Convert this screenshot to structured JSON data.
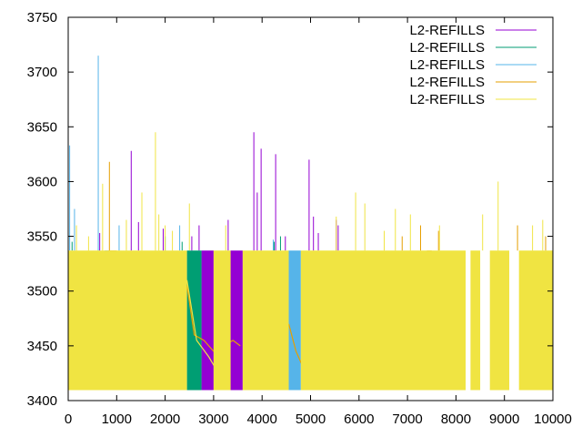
{
  "chart_data": {
    "type": "line",
    "title": "",
    "xlabel": "",
    "ylabel": "",
    "xlim": [
      0,
      10000
    ],
    "ylim": [
      3400,
      3750
    ],
    "x_ticks": [
      "0",
      "1000",
      "2000",
      "3000",
      "4000",
      "5000",
      "6000",
      "7000",
      "8000",
      "9000",
      "10000"
    ],
    "y_ticks": [
      "3400",
      "3450",
      "3500",
      "3550",
      "3600",
      "3650",
      "3700",
      "3750"
    ],
    "grid": false,
    "legend_position": "top-right",
    "series": [
      {
        "name": "L2-REFILLS",
        "color": "#9400d3",
        "band": [
          3410,
          3537
        ],
        "blocks": [
          [
            2750,
            3000
          ],
          [
            3350,
            3600
          ]
        ],
        "spikes": [
          [
            650,
            3553
          ],
          [
            1300,
            3628
          ],
          [
            1450,
            3563
          ],
          [
            1960,
            3557
          ],
          [
            2550,
            3550
          ],
          [
            2700,
            3560
          ],
          [
            3300,
            3565
          ],
          [
            3830,
            3645
          ],
          [
            3900,
            3590
          ],
          [
            3980,
            3630
          ],
          [
            4280,
            3625
          ],
          [
            4480,
            3550
          ],
          [
            4970,
            3620
          ],
          [
            5060,
            3568
          ],
          [
            5160,
            3553
          ],
          [
            5530,
            3565
          ],
          [
            5570,
            3560
          ]
        ]
      },
      {
        "name": "L2-REFILLS",
        "color": "#009e73",
        "band": [
          3410,
          3537
        ],
        "blocks": [
          [
            2450,
            2750
          ]
        ],
        "spikes": [
          [
            80,
            3545
          ],
          [
            2000,
            3550
          ],
          [
            2350,
            3545
          ],
          [
            4250,
            3545
          ],
          [
            4380,
            3550
          ]
        ]
      },
      {
        "name": "L2-REFILLS",
        "color": "#56b4e9",
        "band": [
          3410,
          3537
        ],
        "blocks": [
          [
            750,
            830
          ],
          [
            4550,
            4800
          ]
        ],
        "spikes": [
          [
            30,
            3633
          ],
          [
            130,
            3575
          ],
          [
            620,
            3715
          ],
          [
            1050,
            3560
          ],
          [
            2300,
            3560
          ],
          [
            3980,
            3520
          ],
          [
            4230,
            3547
          ]
        ]
      },
      {
        "name": "L2-REFILLS",
        "color": "#e69f00",
        "band": [
          3410,
          3537
        ],
        "blocks": [
          [
            830,
            1000
          ],
          [
            7400,
            7500
          ]
        ],
        "spikes": [
          [
            850,
            3618
          ],
          [
            6890,
            3550
          ],
          [
            7270,
            3560
          ],
          [
            7640,
            3555
          ],
          [
            9270,
            3560
          ],
          [
            9850,
            3550
          ]
        ],
        "drifts": [
          {
            "x": [
              2450,
              2600,
              2800,
              3000,
              3200,
              3400,
              3550
            ],
            "y": [
              3505,
              3460,
              3455,
              3445,
              3450,
              3455,
              3450
            ]
          },
          {
            "x": [
              4550,
              4700,
              4850
            ],
            "y": [
              3470,
              3445,
              3430
            ]
          },
          {
            "x": [
              7300,
              7450,
              7550
            ],
            "y": [
              3510,
              3480,
              3440
            ]
          }
        ]
      },
      {
        "name": "L2-REFILLS",
        "color": "#f0e442",
        "band": [
          3410,
          3537
        ],
        "blocks": [
          [
            0,
            2450
          ],
          [
            3000,
            3350
          ],
          [
            3600,
            4550
          ],
          [
            4800,
            8200
          ],
          [
            8300,
            8500
          ],
          [
            8700,
            9100
          ],
          [
            9300,
            10000
          ]
        ],
        "spikes": [
          [
            170,
            3560
          ],
          [
            420,
            3550
          ],
          [
            710,
            3598
          ],
          [
            1200,
            3565
          ],
          [
            1520,
            3590
          ],
          [
            1800,
            3645
          ],
          [
            1870,
            3570
          ],
          [
            2000,
            3560
          ],
          [
            2150,
            3555
          ],
          [
            2500,
            3580
          ],
          [
            3250,
            3560
          ],
          [
            5530,
            3568
          ],
          [
            5930,
            3590
          ],
          [
            6120,
            3580
          ],
          [
            6520,
            3555
          ],
          [
            6750,
            3575
          ],
          [
            7060,
            3570
          ],
          [
            7660,
            3560
          ],
          [
            8550,
            3570
          ],
          [
            8870,
            3600
          ],
          [
            9580,
            3560
          ],
          [
            9790,
            3565
          ]
        ],
        "drifts": [
          {
            "x": [
              2450,
              2650,
              2900,
              3100,
              3200
            ],
            "y": [
              3510,
              3455,
              3440,
              3425,
              3420
            ]
          },
          {
            "x": [
              8720,
              8880,
              9060
            ],
            "y": [
              3425,
              3430,
              3420
            ]
          }
        ]
      }
    ]
  }
}
